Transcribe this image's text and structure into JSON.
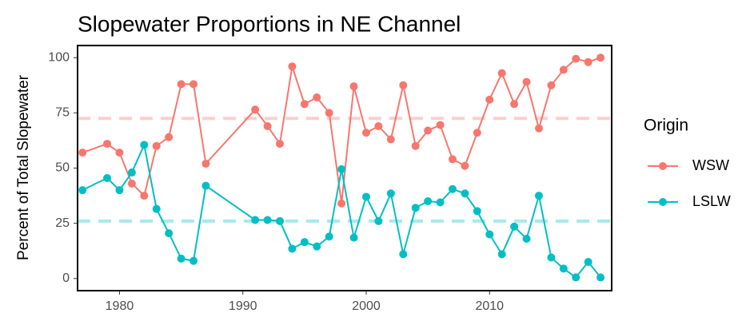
{
  "chart_data": {
    "type": "line",
    "title": "Slopewater Proportions in NE Channel",
    "y_label": "Percent of Total Slopewater",
    "legend_title": "Origin",
    "x": [
      1977,
      1979,
      1980,
      1981,
      1982,
      1983,
      1984,
      1985,
      1986,
      1987,
      1991,
      1992,
      1993,
      1994,
      1995,
      1996,
      1997,
      1998,
      1999,
      2000,
      2001,
      2002,
      2003,
      2004,
      2005,
      2006,
      2007,
      2008,
      2009,
      2010,
      2011,
      2012,
      2013,
      2014,
      2015,
      2016,
      2017,
      2018,
      2019
    ],
    "series": [
      {
        "name": "WSW",
        "color": "#F8766D",
        "reference": 72.5,
        "values": [
          57,
          61,
          57,
          43,
          37.5,
          60,
          64,
          88,
          88,
          52,
          76.5,
          69,
          61,
          96,
          79,
          82,
          75,
          34,
          87,
          66,
          69,
          63,
          87.5,
          60,
          67,
          69.5,
          54,
          51,
          66,
          81,
          93,
          79,
          89,
          68,
          87.5,
          94.5,
          99.5,
          98,
          100
        ]
      },
      {
        "name": "LSLW",
        "color": "#00BFC4",
        "reference": 26,
        "values": [
          40,
          45.5,
          40,
          48,
          60.5,
          31.5,
          20.5,
          9,
          8,
          42,
          26.5,
          26.5,
          26,
          13.5,
          16.5,
          14.5,
          19,
          49.5,
          18.5,
          37,
          26,
          38.5,
          11,
          32,
          35,
          34.5,
          40.5,
          38.5,
          30.5,
          20,
          11,
          23.5,
          18,
          37.5,
          9.5,
          4.5,
          0.5,
          7.5,
          0.5
        ]
      }
    ],
    "xlim": [
      1976.6,
      2019.9
    ],
    "xticks": [
      1980,
      1990,
      2000,
      2010
    ],
    "ylim": [
      -5.5,
      105.5
    ],
    "yticks": [
      0,
      25,
      50,
      75,
      100
    ],
    "legend_position": "right"
  }
}
